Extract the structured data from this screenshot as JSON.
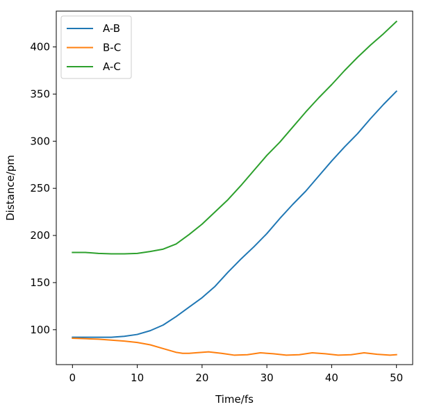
{
  "chart_data": {
    "type": "line",
    "title": "",
    "xlabel": "Time/fs",
    "ylabel": "Distance/pm",
    "xlim": [
      -2.5,
      52.5
    ],
    "ylim": [
      63,
      438
    ],
    "xticks": [
      0,
      10,
      20,
      30,
      40,
      50
    ],
    "yticks": [
      100,
      150,
      200,
      250,
      300,
      350,
      400
    ],
    "grid": false,
    "legend": "top-left",
    "series": [
      {
        "name": "A-B",
        "color": "#1f77b4",
        "x": [
          0,
          2,
          4,
          6,
          8,
          10,
          12,
          14,
          16,
          18,
          20,
          22,
          24,
          26,
          28,
          30,
          32,
          34,
          36,
          38,
          40,
          42,
          44,
          46,
          48,
          50
        ],
        "y": [
          92,
          92,
          92,
          92,
          93,
          95,
          99,
          105,
          114,
          124,
          134,
          146,
          161,
          175,
          188,
          202,
          218,
          233,
          247,
          263,
          279,
          294,
          308,
          324,
          339,
          353
        ]
      },
      {
        "name": "B-C",
        "color": "#ff7f0e",
        "x": [
          0,
          2,
          4,
          6,
          8,
          10,
          12,
          14,
          16,
          17,
          18,
          19,
          21,
          23,
          25,
          27,
          29,
          31,
          33,
          35,
          37,
          39,
          41,
          43,
          45,
          47,
          49,
          50
        ],
        "y": [
          91,
          90.5,
          90,
          89,
          88,
          86.5,
          84,
          80,
          76,
          75,
          75,
          75.5,
          76.5,
          75,
          73,
          73.5,
          75.5,
          74.5,
          73,
          73.5,
          75.5,
          74.5,
          73,
          73.5,
          75.5,
          74,
          73,
          73.5
        ]
      },
      {
        "name": "A-C",
        "color": "#2ca02c",
        "x": [
          0,
          2,
          4,
          6,
          8,
          10,
          12,
          14,
          16,
          18,
          20,
          22,
          24,
          26,
          28,
          30,
          32,
          34,
          36,
          38,
          40,
          42,
          44,
          46,
          48,
          50
        ],
        "y": [
          182,
          182,
          181,
          180.5,
          180.5,
          181,
          183,
          185.5,
          191,
          201,
          212,
          225,
          238,
          253,
          269,
          285,
          299,
          315,
          331,
          346,
          360,
          375,
          389,
          402,
          414,
          427
        ]
      }
    ]
  }
}
